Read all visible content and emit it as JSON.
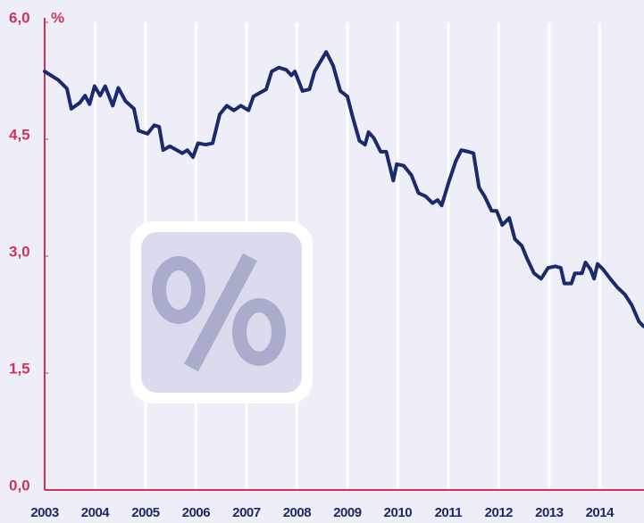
{
  "chart_data": {
    "type": "line",
    "ylabel": "%",
    "color": "#1b2a6c",
    "axis_color": "#d0325a",
    "grid": true,
    "xlim": [
      2003,
      2014.88
    ],
    "ylim": [
      0,
      6
    ],
    "xticks": [
      2003,
      2004,
      2005,
      2006,
      2007,
      2008,
      2009,
      2010,
      2011,
      2012,
      2013,
      2014
    ],
    "yticks": [
      {
        "value": 0,
        "label": "0,0"
      },
      {
        "value": 1.5,
        "label": "1,5"
      },
      {
        "value": 3,
        "label": "3,0"
      },
      {
        "value": 4.5,
        "label": "4,5"
      },
      {
        "value": 6,
        "label": "6,0"
      }
    ],
    "x": [
      2003.0,
      2003.27,
      2003.44,
      2003.53,
      2003.7,
      2003.8,
      2003.89,
      2003.99,
      2004.1,
      2004.2,
      2004.35,
      2004.46,
      2004.6,
      2004.77,
      2004.86,
      2005.04,
      2005.17,
      2005.27,
      2005.35,
      2005.48,
      2005.62,
      2005.73,
      2005.83,
      2005.94,
      2006.04,
      2006.19,
      2006.33,
      2006.47,
      2006.61,
      2006.75,
      2006.89,
      2007.04,
      2007.14,
      2007.28,
      2007.39,
      2007.5,
      2007.64,
      2007.79,
      2007.89,
      2007.96,
      2008.11,
      2008.25,
      2008.35,
      2008.58,
      2008.72,
      2008.86,
      2009.0,
      2009.1,
      2009.24,
      2009.35,
      2009.42,
      2009.52,
      2009.66,
      2009.77,
      2009.91,
      2009.98,
      2010.12,
      2010.27,
      2010.41,
      2010.55,
      2010.69,
      2010.79,
      2010.87,
      2011.01,
      2011.15,
      2011.26,
      2011.4,
      2011.5,
      2011.61,
      2011.72,
      2011.86,
      2011.96,
      2012.07,
      2012.21,
      2012.32,
      2012.46,
      2012.56,
      2012.7,
      2012.84,
      2012.98,
      2013.12,
      2013.23,
      2013.3,
      2013.44,
      2013.51,
      2013.65,
      2013.72,
      2013.82,
      2013.89,
      2013.96,
      2014.07,
      2014.21,
      2014.35,
      2014.5,
      2014.64,
      2014.78,
      2014.87
    ],
    "values": [
      5.37,
      5.26,
      5.15,
      4.89,
      4.97,
      5.06,
      4.95,
      5.18,
      5.06,
      5.18,
      4.93,
      5.16,
      4.99,
      4.89,
      4.61,
      4.57,
      4.68,
      4.66,
      4.36,
      4.41,
      4.36,
      4.32,
      4.36,
      4.27,
      4.45,
      4.43,
      4.45,
      4.82,
      4.93,
      4.87,
      4.93,
      4.87,
      5.05,
      5.1,
      5.14,
      5.37,
      5.42,
      5.39,
      5.32,
      5.37,
      5.12,
      5.14,
      5.37,
      5.62,
      5.44,
      5.12,
      5.05,
      4.8,
      4.48,
      4.43,
      4.59,
      4.52,
      4.34,
      4.34,
      3.97,
      4.18,
      4.16,
      4.04,
      3.81,
      3.77,
      3.68,
      3.72,
      3.65,
      3.95,
      4.22,
      4.36,
      4.34,
      4.32,
      3.88,
      3.77,
      3.58,
      3.58,
      3.4,
      3.49,
      3.22,
      3.13,
      2.97,
      2.78,
      2.71,
      2.85,
      2.87,
      2.85,
      2.65,
      2.65,
      2.78,
      2.78,
      2.92,
      2.83,
      2.71,
      2.9,
      2.83,
      2.71,
      2.6,
      2.51,
      2.37,
      2.16,
      2.1
    ]
  }
}
